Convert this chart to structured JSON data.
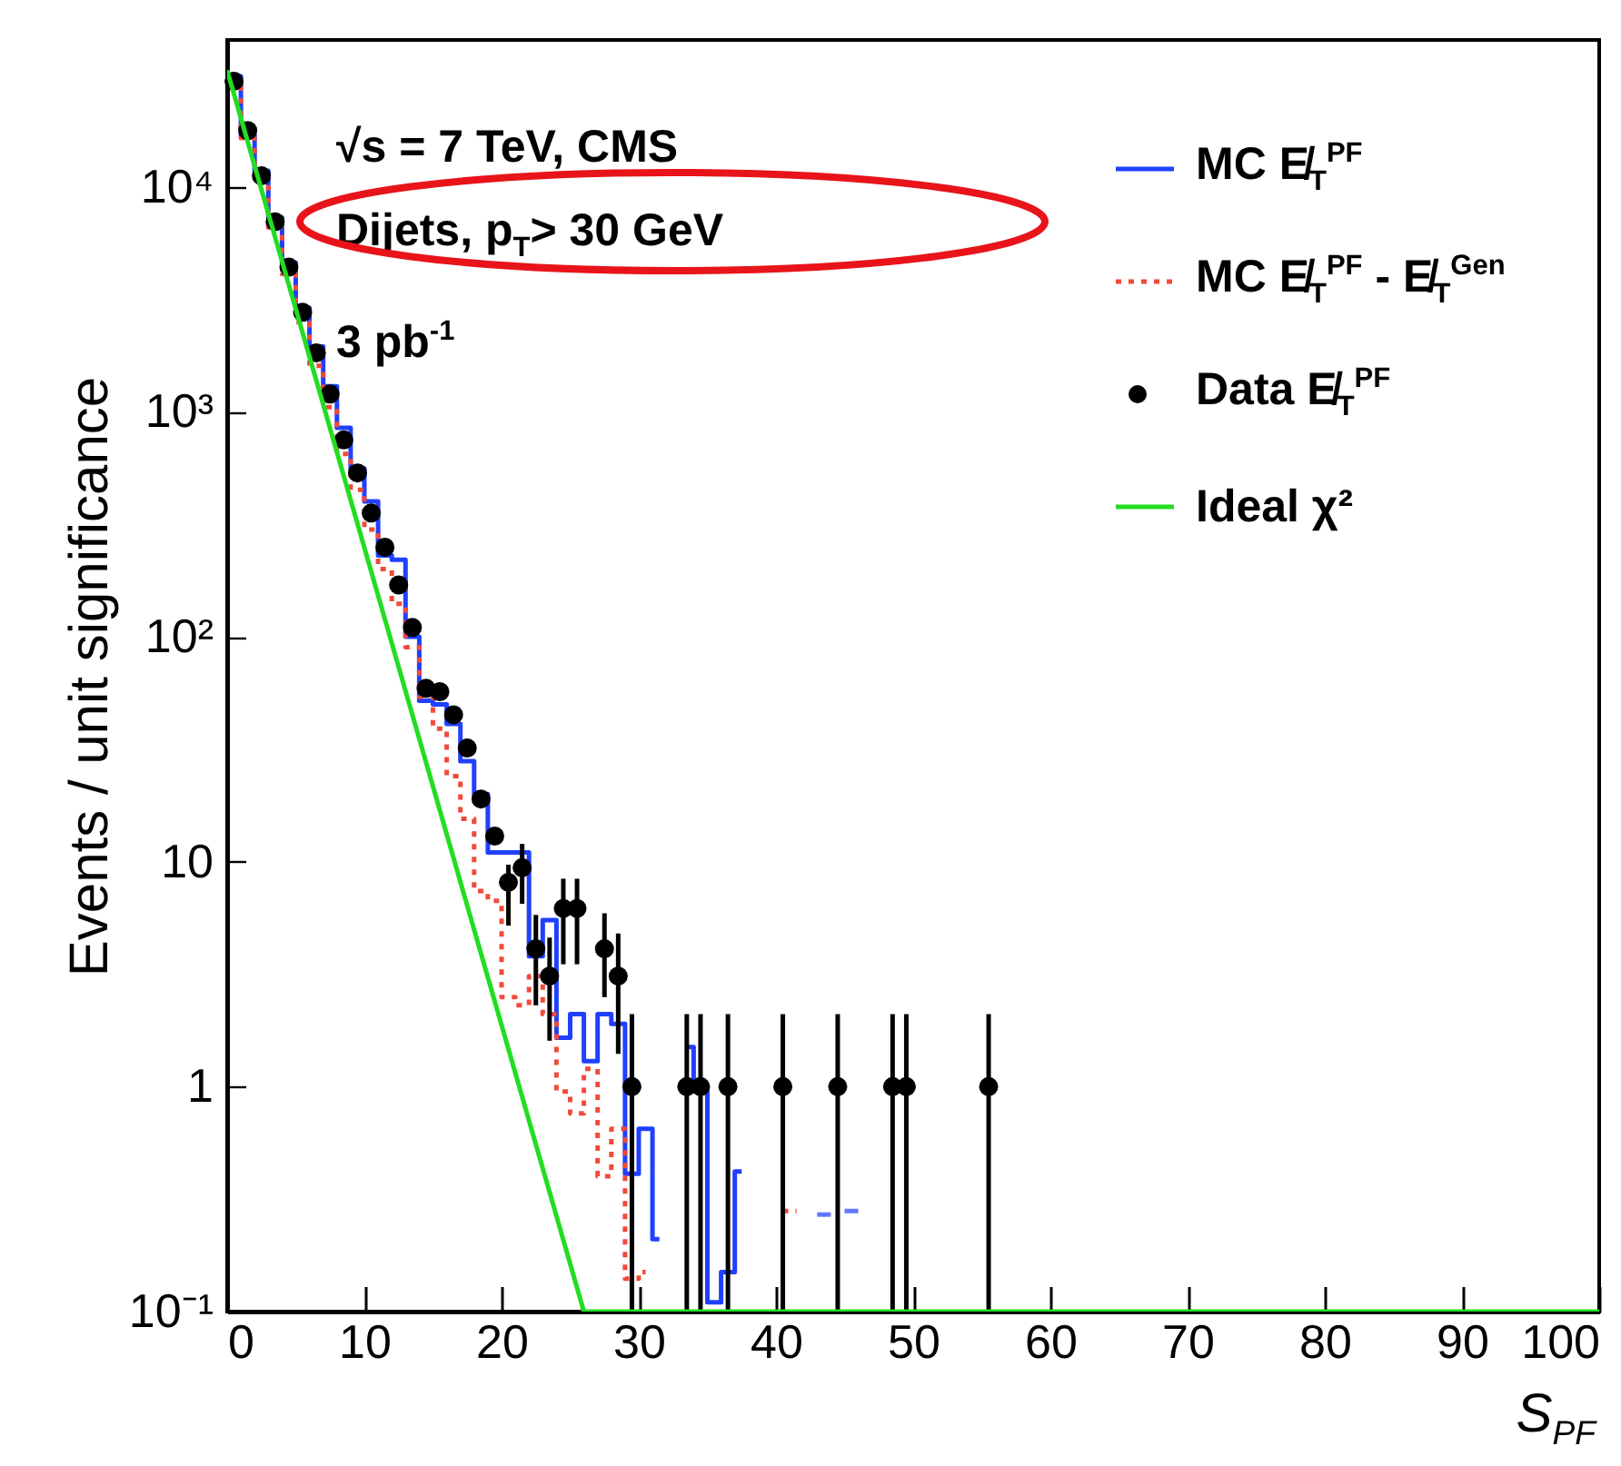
{
  "chart_data": {
    "type": "step",
    "xlabel": "S$_{PF}$",
    "ylabel": "Events / unit significance",
    "log": true,
    "grid": false,
    "legend": "top right",
    "xlim": [
      0,
      100
    ],
    "xticks": [
      0,
      10,
      20,
      30,
      40,
      50,
      60,
      70,
      80,
      90,
      100
    ],
    "ylim": [
      0.1,
      45000
    ],
    "yticks": [
      {
        "value": 0.1,
        "label": "10⁻¹"
      },
      1,
      10,
      {
        "value": 100,
        "label": "10²"
      },
      {
        "value": 1000,
        "label": "10³"
      },
      {
        "value": 10000,
        "label": "10⁴"
      }
    ],
    "annotations": [
      "√s = 7 TeV, CMS",
      "Dijets, p$_{T}$> 30 GeV",
      "3 pb$^{-1}$"
    ],
    "series": [
      {
        "name": "MC E̸$_{T}$$^{PF}$",
        "color": "#2040ff",
        "line_style": "solid",
        "x": [
          0.5,
          1.5,
          2.5,
          3.5,
          4.5,
          5.5,
          6.5,
          7.5,
          8.5,
          9.5,
          10.5,
          11.5,
          12.5,
          13.5,
          14.5,
          15.5,
          16.5,
          17.5,
          18.5,
          19.5,
          20.5,
          21.5,
          22.5,
          23.5,
          24.5,
          25.5,
          26.5,
          27.5,
          28.5,
          29.5,
          30.5,
          31.5,
          32.5,
          33.5,
          34.5,
          35.5,
          36.5,
          37.5,
          38.5,
          39.5,
          40.5,
          41.5,
          42.5,
          43.5,
          44.5,
          45.5
        ],
        "values": [
          31000,
          17000,
          11800,
          7300,
          4600,
          2900,
          1950,
          1300,
          850,
          560,
          400,
          230,
          220,
          100,
          52,
          50,
          41,
          28,
          20,
          11,
          11,
          11,
          3.8,
          5.5,
          1.65,
          2.1,
          1.3,
          2.1,
          1.9,
          0.41,
          0.65,
          0.21,
          null,
          1.5,
          1.0,
          0.11,
          0.15,
          0.42,
          null,
          null,
          null,
          null,
          null,
          0.27,
          null,
          0.28
        ]
      },
      {
        "name": "MC E̸$_{T}$$^{PF}$ - E̸$_{T}$$^{Gen}$",
        "color": "#f04a3a",
        "line_style": "dotted",
        "x": [
          0.5,
          1.5,
          2.5,
          3.5,
          4.5,
          5.5,
          6.5,
          7.5,
          8.5,
          9.5,
          10.5,
          11.5,
          12.5,
          13.5,
          14.5,
          15.5,
          16.5,
          17.5,
          18.5,
          19.5,
          20.5,
          21.5,
          22.5,
          23.5,
          24.5,
          25.5,
          26.5,
          27.5,
          28.5,
          29.5,
          30.5,
          31.5,
          32.5,
          33.5,
          34.5,
          35.5,
          36.5,
          37.5,
          38.5,
          39.5,
          40.5,
          41.5
        ],
        "values": [
          30000,
          16500,
          10500,
          6600,
          4100,
          2500,
          1600,
          1050,
          650,
          450,
          300,
          200,
          140,
          90,
          54,
          39,
          24,
          15.5,
          7.4,
          6.7,
          2.5,
          2.3,
          3.1,
          2.1,
          0.95,
          0.76,
          1.2,
          0.4,
          0.65,
          0.14,
          0.15,
          null,
          null,
          null,
          null,
          null,
          null,
          null,
          null,
          null,
          0.28,
          0.28
        ]
      },
      {
        "name": "Data E̸$_{T}$$^{PF}$",
        "type": "scatter",
        "color": "#000000",
        "marker": "circle",
        "x": [
          0.5,
          1.5,
          2.5,
          3.5,
          4.5,
          5.5,
          6.5,
          7.5,
          8.5,
          9.5,
          10.5,
          11.5,
          12.5,
          13.5,
          14.5,
          15.5,
          16.5,
          17.5,
          18.5,
          19.5,
          20.5,
          21.5,
          22.5,
          23.5,
          24.5,
          25.5,
          27.5,
          28.5,
          29.5,
          33.5,
          34.5,
          36.5,
          40.5,
          44.5,
          48.5,
          49.5,
          55.5
        ],
        "values": [
          29500,
          17800,
          11200,
          7000,
          4400,
          2770,
          1830,
          1200,
          750,
          535,
          355,
          250,
          170,
          110,
          59,
          57,
          45,
          32,
          19,
          13,
          8.1,
          9.4,
          4.1,
          3.1,
          6.2,
          6.2,
          4.1,
          3.1,
          1,
          1,
          1,
          1,
          1,
          1,
          1,
          1,
          1
        ],
        "errors": [
          null,
          null,
          null,
          null,
          null,
          null,
          null,
          null,
          null,
          null,
          null,
          null,
          null,
          null,
          null,
          null,
          null,
          null,
          null,
          null,
          [
            5.2,
            9.7
          ],
          [
            6.5,
            12
          ],
          [
            2.3,
            5.8
          ],
          [
            1.6,
            4.6
          ],
          [
            3.5,
            8.4
          ],
          [
            3.5,
            8.4
          ],
          [
            2.5,
            5.9
          ],
          [
            1.4,
            4.8
          ],
          [
            0.1,
            2.1
          ],
          [
            0.1,
            2.1
          ],
          [
            0.1,
            2.1
          ],
          [
            0.1,
            2.1
          ],
          [
            0.1,
            2.1
          ],
          [
            0.1,
            2.1
          ],
          [
            0.1,
            2.1
          ],
          [
            0.1,
            2.1
          ],
          [
            0.1,
            2.1
          ]
        ]
      },
      {
        "name": "Ideal χ²",
        "type": "line",
        "color": "#22dd22",
        "line_style": "solid",
        "x": [
          0,
          26,
          100
        ],
        "values": [
          33000,
          0.1,
          0.1
        ]
      }
    ]
  }
}
